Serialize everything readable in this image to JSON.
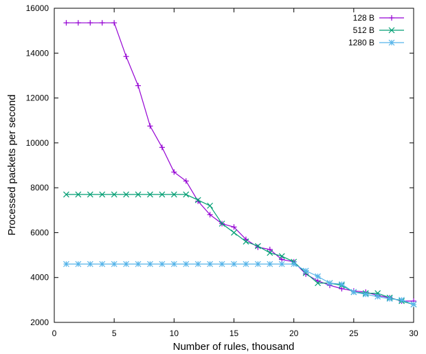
{
  "chart_data": {
    "type": "line",
    "title": "",
    "xlabel": "Number of rules, thousand",
    "ylabel": "Processed packets per second",
    "xlim": [
      0,
      30
    ],
    "ylim": [
      2000,
      16000
    ],
    "xticks": [
      0,
      5,
      10,
      15,
      20,
      25,
      30
    ],
    "yticks": [
      2000,
      4000,
      6000,
      8000,
      10000,
      12000,
      14000,
      16000
    ],
    "grid": false,
    "legend_position": "top-right",
    "x": [
      1,
      2,
      3,
      4,
      5,
      6,
      7,
      8,
      9,
      10,
      11,
      12,
      13,
      14,
      15,
      16,
      17,
      18,
      19,
      20,
      21,
      22,
      23,
      24,
      25,
      26,
      27,
      28,
      29,
      30
    ],
    "series": [
      {
        "name": "128 B",
        "color": "#9400d3",
        "marker": "plus",
        "values": [
          15350,
          15350,
          15350,
          15350,
          15350,
          13850,
          12550,
          10750,
          9800,
          8700,
          8300,
          7400,
          6800,
          6400,
          6250,
          5700,
          5350,
          5250,
          4800,
          4700,
          4150,
          3850,
          3650,
          3500,
          3400,
          3350,
          3200,
          3100,
          2950,
          2950
        ]
      },
      {
        "name": "512 B",
        "color": "#009e73",
        "marker": "cross",
        "values": [
          7700,
          7700,
          7700,
          7700,
          7700,
          7700,
          7700,
          7700,
          7700,
          7700,
          7700,
          7450,
          7200,
          6400,
          6000,
          5600,
          5400,
          5100,
          4950,
          4700,
          4200,
          3750,
          3750,
          3650,
          3350,
          3300,
          3300,
          3100,
          2950,
          2800
        ]
      },
      {
        "name": "1280 B",
        "color": "#56b4e9",
        "marker": "star",
        "values": [
          4600,
          4600,
          4600,
          4600,
          4600,
          4600,
          4600,
          4600,
          4600,
          4600,
          4600,
          4600,
          4600,
          4600,
          4600,
          4600,
          4600,
          4600,
          4600,
          4600,
          4300,
          4050,
          3750,
          3700,
          3350,
          3250,
          3150,
          3050,
          3000,
          2800
        ]
      }
    ]
  }
}
